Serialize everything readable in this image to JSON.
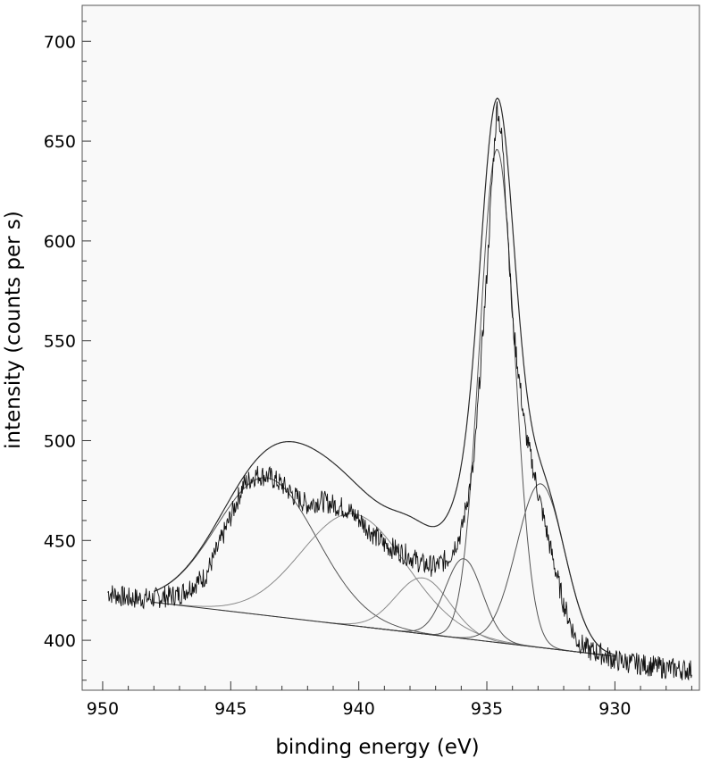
{
  "chart_data": {
    "type": "line",
    "title": "",
    "xlabel": "binding energy (eV)",
    "ylabel": "intensity (counts per s)",
    "xlim": [
      950.8,
      926.7
    ],
    "ylim": [
      375,
      718
    ],
    "x_reversed": true,
    "x_ticks": [
      950,
      945,
      940,
      935,
      930
    ],
    "y_ticks": [
      400,
      450,
      500,
      550,
      600,
      650,
      700
    ],
    "grid": false,
    "legend": "none",
    "colors": {
      "background": "#f9f9f9",
      "data": "#111111",
      "envelope": "#2a2a2a",
      "component": "#555555",
      "component_light": "#8a8a8a",
      "baseline": "#333333"
    },
    "baseline": {
      "description_x": [
        950,
        930
      ],
      "y": [
        422,
        392
      ]
    },
    "components": [
      {
        "center": 943.6,
        "height": 69,
        "fwhm": 4.6,
        "color": "component"
      },
      {
        "center": 940.2,
        "height": 56,
        "fwhm": 4.8,
        "color": "component_light"
      },
      {
        "center": 937.5,
        "height": 28,
        "fwhm": 2.5,
        "color": "component_light"
      },
      {
        "center": 935.9,
        "height": 40,
        "fwhm": 1.7,
        "color": "component"
      },
      {
        "center": 934.6,
        "height": 247,
        "fwhm": 1.6,
        "color": "component"
      },
      {
        "center": 932.9,
        "height": 82,
        "fwhm": 2.2,
        "color": "component"
      }
    ],
    "series": [
      {
        "kind": "measured",
        "x": [
          949.8,
          949.0,
          948.0,
          947.0,
          946.0,
          945.5,
          945.0,
          944.5,
          944.0,
          943.5,
          943.0,
          942.5,
          942.0,
          941.5,
          941.0,
          940.5,
          940.0,
          939.5,
          939.0,
          938.5,
          938.0,
          937.5,
          937.0,
          936.5,
          936.0,
          935.5,
          935.0,
          934.8,
          934.6,
          934.4,
          934.2,
          934.0,
          933.5,
          933.0,
          932.5,
          932.0,
          931.5,
          931.0,
          930.5,
          930.0,
          929.0,
          928.0,
          927.0
        ],
        "y": [
          424,
          421,
          421,
          423,
          432,
          446,
          462,
          478,
          483,
          482,
          478,
          472,
          468,
          470,
          468,
          466,
          461,
          454,
          448,
          445,
          442,
          438,
          437,
          441,
          454,
          489,
          583,
          630,
          668,
          650,
          610,
          560,
          505,
          474,
          445,
          418,
          400,
          395,
          393,
          390,
          388,
          386,
          385
        ]
      }
    ]
  }
}
